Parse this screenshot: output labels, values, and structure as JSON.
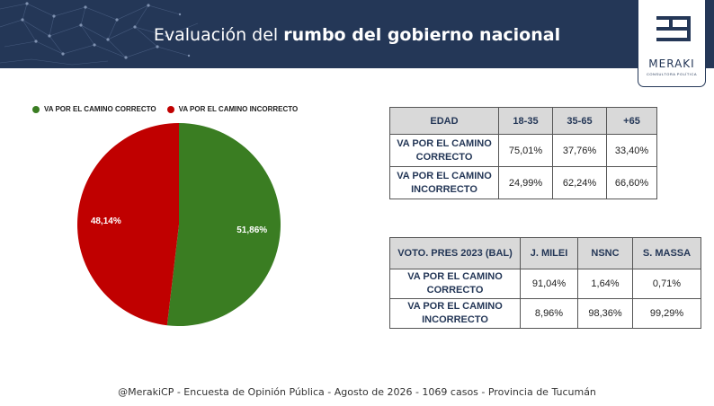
{
  "header": {
    "title_light": "Evaluación del ",
    "title_bold": "rumbo del gobierno nacional",
    "background_color": "#243757"
  },
  "logo": {
    "word": "MERAKI",
    "subtitle": "CONSULTORA POLÍTICA",
    "icon": "meraki-logo-icon"
  },
  "chart_data": {
    "type": "pie",
    "categories": [
      "VA POR EL CAMINO CORRECTO",
      "VA POR EL CAMINO INCORRECTO"
    ],
    "values": [
      51.86,
      48.14
    ],
    "labels": [
      "51,86%",
      "48,14%"
    ],
    "colors": [
      "#3a7d22",
      "#c00000"
    ],
    "legend": "top-left"
  },
  "table_edad": {
    "header": [
      "EDAD",
      "18-35",
      "35-65",
      "+65"
    ],
    "rows": [
      {
        "label": "VA POR EL CAMINO CORRECTO",
        "values": [
          "75,01%",
          "37,76%",
          "33,40%"
        ]
      },
      {
        "label": "VA POR EL CAMINO INCORRECTO",
        "values": [
          "24,99%",
          "62,24%",
          "66,60%"
        ]
      }
    ]
  },
  "table_voto": {
    "header": [
      "VOTO. PRES 2023 (BAL)",
      "J. MILEI",
      "NSNC",
      "S. MASSA"
    ],
    "rows": [
      {
        "label": "VA POR EL CAMINO CORRECTO",
        "values": [
          "91,04%",
          "1,64%",
          "0,71%"
        ]
      },
      {
        "label": "VA POR EL CAMINO INCORRECTO",
        "values": [
          "8,96%",
          "98,36%",
          "99,29%"
        ]
      }
    ]
  },
  "footer": "@MerakiCP - Encuesta de Opinión Pública - Agosto de 2026 - 1069 casos - Provincia de Tucumán"
}
